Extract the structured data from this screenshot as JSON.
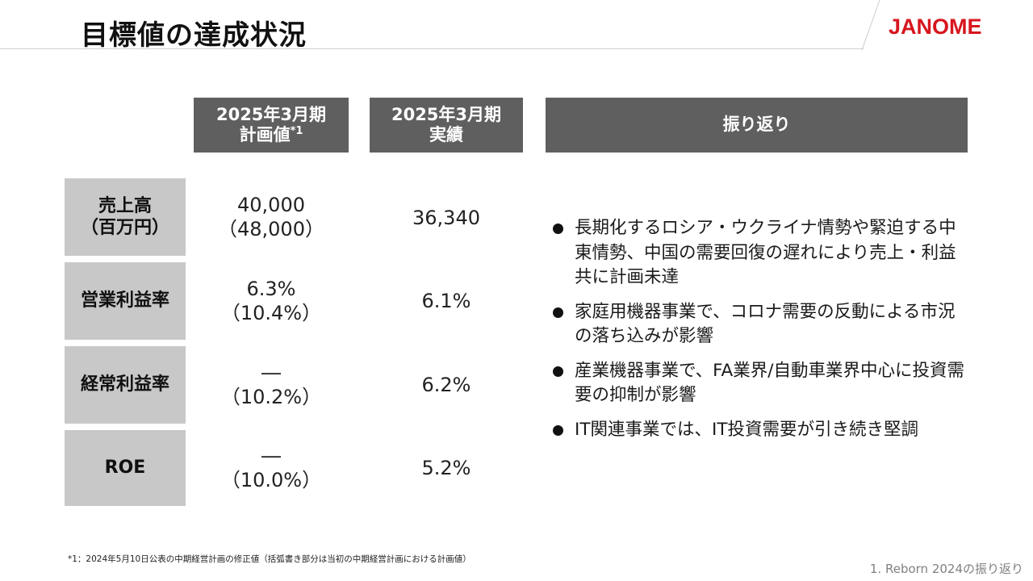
{
  "header": {
    "title": "目標値の達成状況",
    "logo": "JANOME"
  },
  "table": {
    "columns": {
      "plan": {
        "line1": "2025年3月期",
        "line2": "計画値",
        "sup": "*1"
      },
      "actual": {
        "line1": "2025年3月期",
        "line2": "実績"
      },
      "review": {
        "label": "振り返り"
      }
    },
    "rows": [
      {
        "label_line1": "売上高",
        "label_line2": "（百万円）",
        "plan_line1": "40,000",
        "plan_line2": "（48,000）",
        "actual": "36,340"
      },
      {
        "label_line1": "営業利益率",
        "label_line2": "",
        "plan_line1": "6.3%",
        "plan_line2": "（10.4%）",
        "actual": "6.1%"
      },
      {
        "label_line1": "経常利益率",
        "label_line2": "",
        "plan_line1": "―",
        "plan_line2": "（10.2%）",
        "actual": "6.2%"
      },
      {
        "label_line1": "ROE",
        "label_line2": "",
        "plan_line1": "―",
        "plan_line2": "（10.0%）",
        "actual": "5.2%"
      }
    ]
  },
  "review_points": [
    "長期化するロシア・ウクライナ情勢や緊迫する中東情勢、中国の需要回復の遅れにより売上・利益共に計画未達",
    "家庭用機器事業で、コロナ需要の反動による市況の落ち込みが影響",
    "産業機器事業で、FA業界/自動車業界中心に投資需要の抑制が影響",
    "IT関連事業では、IT投資需要が引き続き堅調"
  ],
  "footnote": "*1：2024年5月10日公表の中期経営計画の修正値（括弧書き部分は当初の中期経営計画における計画値）",
  "page_reference": "1. Reborn 2024の振り返り",
  "colors": {
    "header_bg": "#5f5f5f",
    "row_label_bg": "#c8c8c8",
    "logo": "#d7161f"
  }
}
